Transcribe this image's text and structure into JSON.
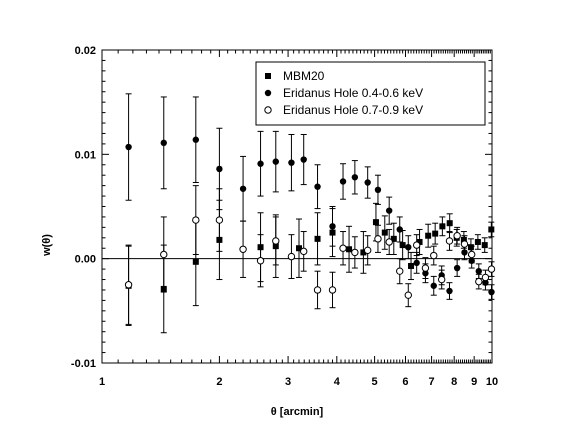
{
  "chart_data": {
    "type": "scatter",
    "xlabel": "θ [arcmin]",
    "ylabel": "w(θ)",
    "xscale": "log",
    "xlim": [
      1,
      10
    ],
    "ylim": [
      -0.01,
      0.02
    ],
    "x_ticks": [
      {
        "value": 1,
        "label": "1"
      },
      {
        "value": 2,
        "label": "2"
      },
      {
        "value": 3,
        "label": "3"
      },
      {
        "value": 4,
        "label": "4"
      },
      {
        "value": 5,
        "label": "5"
      },
      {
        "value": 6,
        "label": "6"
      },
      {
        "value": 7,
        "label": "7"
      },
      {
        "value": 8,
        "label": "8"
      },
      {
        "value": 9,
        "label": "9"
      },
      {
        "value": 10,
        "label": "10"
      }
    ],
    "y_ticks": [
      {
        "value": -0.01,
        "label": "-0.01"
      },
      {
        "value": 0.0,
        "label": "0.00"
      },
      {
        "value": 0.01,
        "label": "0.01"
      },
      {
        "value": 0.02,
        "label": "0.02"
      }
    ],
    "zero_line": true,
    "grid": false,
    "legend_position": "top-right",
    "series": [
      {
        "name": "MBM20",
        "marker": "filled-square",
        "color": "#000000",
        "points": [
          [
            1.17,
            -0.0026,
            0.0038
          ],
          [
            1.44,
            -0.0029,
            0.0042
          ],
          [
            1.74,
            -0.0003,
            0.0042
          ],
          [
            2.0,
            0.0018,
            0.0038
          ],
          [
            2.55,
            0.0011,
            0.0033
          ],
          [
            2.79,
            0.0012,
            0.003
          ],
          [
            3.2,
            0.001,
            0.0028
          ],
          [
            3.57,
            0.0019,
            0.0025
          ],
          [
            3.9,
            0.0025,
            0.0023
          ],
          [
            4.3,
            0.0009,
            0.0022
          ],
          [
            4.68,
            0.0006,
            0.002
          ],
          [
            5.04,
            0.0035,
            0.0018
          ],
          [
            5.31,
            0.0025,
            0.0016
          ],
          [
            5.6,
            0.0019,
            0.0015
          ],
          [
            5.9,
            0.0013,
            0.0014
          ],
          [
            6.2,
            -0.0007,
            0.0013
          ],
          [
            6.52,
            0.0016,
            0.0012
          ],
          [
            6.86,
            0.0022,
            0.0011
          ],
          [
            7.15,
            0.0024,
            0.001
          ],
          [
            7.46,
            0.0031,
            0.0009
          ],
          [
            7.79,
            0.0034,
            0.0009
          ],
          [
            8.12,
            0.002,
            0.0008
          ],
          [
            8.47,
            0.0018,
            0.0008
          ],
          [
            8.83,
            0.0011,
            0.0008
          ],
          [
            9.2,
            0.0016,
            0.0007
          ],
          [
            9.58,
            0.0013,
            0.0007
          ],
          [
            9.96,
            0.0028,
            0.0007
          ]
        ]
      },
      {
        "name": "Eridanus Hole 0.4-0.6 keV",
        "marker": "filled-circle",
        "color": "#000000",
        "points": [
          [
            1.17,
            0.0107,
            0.0051
          ],
          [
            1.44,
            0.0111,
            0.0044
          ],
          [
            1.74,
            0.0114,
            0.0041
          ],
          [
            2.0,
            0.0086,
            0.0039
          ],
          [
            2.3,
            0.0067,
            0.0031
          ],
          [
            2.55,
            0.0091,
            0.0031
          ],
          [
            2.79,
            0.0093,
            0.0029
          ],
          [
            3.06,
            0.0092,
            0.0027
          ],
          [
            3.29,
            0.0095,
            0.0024
          ],
          [
            3.57,
            0.0069,
            0.0021
          ],
          [
            3.9,
            0.0031,
            0.0019
          ],
          [
            4.15,
            0.0074,
            0.0017
          ],
          [
            4.45,
            0.0078,
            0.0016
          ],
          [
            4.8,
            0.0073,
            0.0015
          ],
          [
            5.1,
            0.0066,
            0.0014
          ],
          [
            5.45,
            0.0046,
            0.0013
          ],
          [
            5.8,
            0.0028,
            0.0012
          ],
          [
            6.1,
            0.0011,
            0.0011
          ],
          [
            6.41,
            -0.0004,
            0.001
          ],
          [
            6.75,
            -0.0014,
            0.0009
          ],
          [
            7.09,
            -0.0026,
            0.0009
          ],
          [
            7.43,
            -0.0016,
            0.0009
          ],
          [
            7.78,
            -0.0031,
            0.0008
          ],
          [
            8.14,
            -0.0009,
            0.0008
          ],
          [
            8.5,
            0.0006,
            0.0007
          ],
          [
            8.87,
            -0.0002,
            0.0007
          ],
          [
            9.25,
            -0.0012,
            0.0007
          ],
          [
            9.62,
            -0.0023,
            0.0007
          ],
          [
            9.97,
            -0.0032,
            0.0007
          ]
        ]
      },
      {
        "name": "Eridanus Hole 0.7-0.9 keV",
        "marker": "open-circle",
        "color": "#000000",
        "points": [
          [
            1.17,
            -0.0025,
            0.0038
          ],
          [
            1.44,
            0.0004,
            0.0036
          ],
          [
            1.74,
            0.0037,
            0.0033
          ],
          [
            2.0,
            0.0037,
            0.003
          ],
          [
            2.3,
            0.0009,
            0.0027
          ],
          [
            2.55,
            -0.0002,
            0.0025
          ],
          [
            2.79,
            0.0017,
            0.0023
          ],
          [
            3.06,
            0.0002,
            0.0021
          ],
          [
            3.29,
            0.0007,
            0.0019
          ],
          [
            3.57,
            -0.003,
            0.0018
          ],
          [
            3.9,
            -0.003,
            0.0017
          ],
          [
            4.15,
            0.001,
            0.0016
          ],
          [
            4.45,
            0.0006,
            0.0015
          ],
          [
            4.8,
            0.0008,
            0.0014
          ],
          [
            5.1,
            0.0019,
            0.0013
          ],
          [
            5.45,
            0.0016,
            0.0012
          ],
          [
            5.8,
            -0.0012,
            0.0012
          ],
          [
            6.1,
            -0.0035,
            0.0011
          ],
          [
            6.41,
            0.0013,
            0.001
          ],
          [
            6.75,
            -0.0009,
            0.001
          ],
          [
            7.09,
            0.0003,
            0.0009
          ],
          [
            7.43,
            -0.002,
            0.0009
          ],
          [
            7.78,
            0.0017,
            0.0009
          ],
          [
            8.14,
            0.0022,
            0.0008
          ],
          [
            8.5,
            0.0014,
            0.0008
          ],
          [
            8.87,
            0.0004,
            0.0008
          ],
          [
            9.25,
            -0.0022,
            0.0007
          ],
          [
            9.62,
            -0.0018,
            0.0007
          ],
          [
            9.97,
            -0.001,
            0.0007
          ]
        ]
      }
    ]
  }
}
